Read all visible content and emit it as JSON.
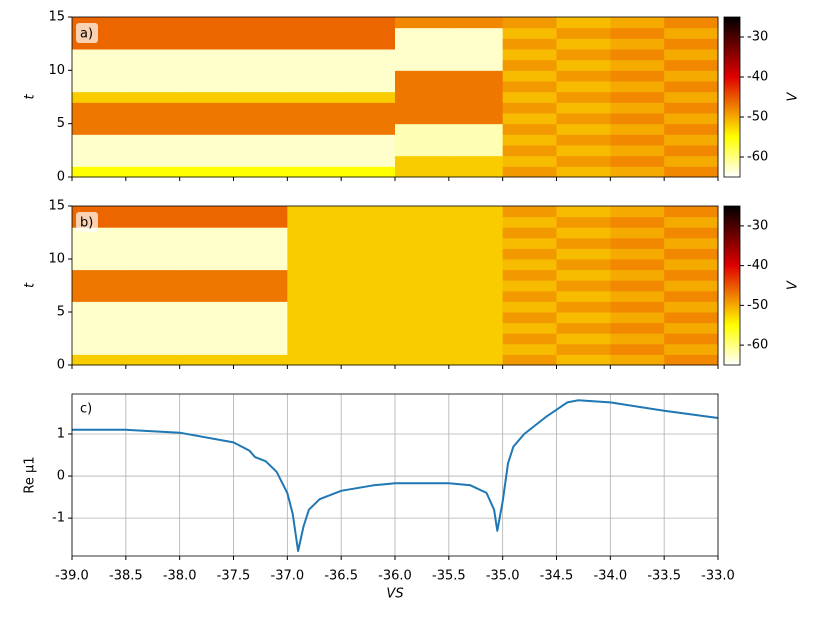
{
  "chart_data": [
    {
      "type": "heatmap",
      "panel_label": "a)",
      "ylabel": "t",
      "colorbar_label": "V",
      "colormap": "hot_r",
      "xbins": [
        -39,
        -38.5,
        -38,
        -37.5,
        -37,
        -36.5,
        -36,
        -35.5,
        -35,
        -34.5,
        -34,
        -33.5,
        -33
      ],
      "ybins": [
        0,
        1,
        2,
        3,
        4,
        5,
        6,
        7,
        8,
        9,
        10,
        11,
        12,
        13,
        14,
        15
      ],
      "z": [
        [
          -55,
          -55,
          -55,
          -55,
          -55,
          -55,
          -52,
          -52,
          -49,
          -51,
          -50,
          -48
        ],
        [
          -63,
          -63,
          -63,
          -63,
          -63,
          -63,
          -52,
          -52,
          -51,
          -49,
          -48,
          -50
        ],
        [
          -63,
          -63,
          -63,
          -63,
          -63,
          -63,
          -62,
          -62,
          -49,
          -51,
          -50,
          -48
        ],
        [
          -63,
          -63,
          -63,
          -63,
          -63,
          -63,
          -62,
          -62,
          -51,
          -49,
          -48,
          -50
        ],
        [
          -47,
          -47,
          -47,
          -47,
          -47,
          -47,
          -62,
          -62,
          -49,
          -51,
          -50,
          -48
        ],
        [
          -47,
          -47,
          -47,
          -47,
          -47,
          -47,
          -47,
          -47,
          -51,
          -49,
          -48,
          -50
        ],
        [
          -47,
          -47,
          -47,
          -47,
          -47,
          -47,
          -47,
          -47,
          -49,
          -51,
          -50,
          -48
        ],
        [
          -52,
          -52,
          -52,
          -52,
          -52,
          -52,
          -47,
          -47,
          -51,
          -49,
          -48,
          -50
        ],
        [
          -63,
          -63,
          -63,
          -63,
          -63,
          -63,
          -47,
          -47,
          -49,
          -51,
          -50,
          -48
        ],
        [
          -63,
          -63,
          -63,
          -63,
          -63,
          -63,
          -47,
          -47,
          -51,
          -49,
          -48,
          -50
        ],
        [
          -63,
          -63,
          -63,
          -63,
          -63,
          -63,
          -63,
          -63,
          -49,
          -51,
          -50,
          -48
        ],
        [
          -63,
          -63,
          -63,
          -63,
          -63,
          -63,
          -63,
          -63,
          -51,
          -49,
          -48,
          -50
        ],
        [
          -46,
          -46,
          -46,
          -46,
          -46,
          -46,
          -63,
          -63,
          -49,
          -51,
          -50,
          -48
        ],
        [
          -46,
          -46,
          -46,
          -46,
          -46,
          -46,
          -63,
          -63,
          -51,
          -49,
          -48,
          -50
        ],
        [
          -46,
          -46,
          -46,
          -46,
          -46,
          -46,
          -48,
          -48,
          -49,
          -51,
          -50,
          -48
        ]
      ],
      "xlim": [
        -39,
        -33
      ],
      "ylim": [
        0,
        15
      ],
      "yticks": [
        0,
        5,
        10,
        15
      ],
      "clim": [
        -65,
        -25
      ],
      "cticks": [
        -30,
        -40,
        -50,
        -60
      ]
    },
    {
      "type": "heatmap",
      "panel_label": "b)",
      "ylabel": "t",
      "colorbar_label": "V",
      "colormap": "hot_r",
      "xbins": [
        -39,
        -38.5,
        -38,
        -37.5,
        -37,
        -36.5,
        -36,
        -35.5,
        -35,
        -34.5,
        -34,
        -33.5,
        -33
      ],
      "ybins": [
        0,
        1,
        2,
        3,
        4,
        5,
        6,
        7,
        8,
        9,
        10,
        11,
        12,
        13,
        14,
        15
      ],
      "z": [
        [
          -52,
          -52,
          -52,
          -52,
          -52,
          -52,
          -52,
          -52,
          -49,
          -51,
          -50,
          -48
        ],
        [
          -63,
          -63,
          -63,
          -63,
          -52,
          -52,
          -52,
          -52,
          -51,
          -49,
          -48,
          -50
        ],
        [
          -63,
          -63,
          -63,
          -63,
          -52,
          -52,
          -52,
          -52,
          -49,
          -51,
          -50,
          -48
        ],
        [
          -63,
          -63,
          -63,
          -63,
          -52,
          -52,
          -52,
          -52,
          -51,
          -49,
          -48,
          -50
        ],
        [
          -63,
          -63,
          -63,
          -63,
          -52,
          -52,
          -52,
          -52,
          -49,
          -51,
          -50,
          -48
        ],
        [
          -63,
          -63,
          -63,
          -63,
          -52,
          -52,
          -52,
          -52,
          -51,
          -49,
          -48,
          -50
        ],
        [
          -47,
          -47,
          -47,
          -47,
          -52,
          -52,
          -52,
          -52,
          -49,
          -51,
          -50,
          -48
        ],
        [
          -47,
          -47,
          -47,
          -47,
          -52,
          -52,
          -52,
          -52,
          -51,
          -49,
          -48,
          -50
        ],
        [
          -47,
          -47,
          -47,
          -47,
          -52,
          -52,
          -52,
          -52,
          -49,
          -51,
          -50,
          -48
        ],
        [
          -63,
          -63,
          -63,
          -63,
          -52,
          -52,
          -52,
          -52,
          -51,
          -49,
          -48,
          -50
        ],
        [
          -63,
          -63,
          -63,
          -63,
          -52,
          -52,
          -52,
          -52,
          -49,
          -51,
          -50,
          -48
        ],
        [
          -63,
          -63,
          -63,
          -63,
          -52,
          -52,
          -52,
          -52,
          -51,
          -49,
          -48,
          -50
        ],
        [
          -63,
          -63,
          -63,
          -63,
          -52,
          -52,
          -52,
          -52,
          -49,
          -51,
          -50,
          -48
        ],
        [
          -46,
          -46,
          -46,
          -46,
          -52,
          -52,
          -52,
          -52,
          -51,
          -49,
          -48,
          -50
        ],
        [
          -46,
          -46,
          -46,
          -46,
          -52,
          -52,
          -52,
          -52,
          -49,
          -51,
          -50,
          -48
        ]
      ],
      "xlim": [
        -39,
        -33
      ],
      "ylim": [
        0,
        15
      ],
      "yticks": [
        0,
        5,
        10,
        15
      ],
      "clim": [
        -65,
        -25
      ],
      "cticks": [
        -30,
        -40,
        -50,
        -60
      ]
    },
    {
      "type": "line",
      "panel_label": "c)",
      "ylabel": "Re μ1",
      "xlabel": "VS",
      "color": "#1f77b4",
      "grid": true,
      "x": [
        -39,
        -38.5,
        -38,
        -37.5,
        -37.35,
        -37.3,
        -37.2,
        -37.1,
        -37.0,
        -36.95,
        -36.9,
        -36.85,
        -36.8,
        -36.7,
        -36.5,
        -36.2,
        -36.0,
        -35.5,
        -35.3,
        -35.15,
        -35.08,
        -35.05,
        -35.0,
        -34.95,
        -34.9,
        -34.8,
        -34.6,
        -34.4,
        -34.3,
        -34.0,
        -33.5,
        -33.0
      ],
      "y": [
        1.1,
        1.1,
        1.03,
        0.8,
        0.6,
        0.45,
        0.35,
        0.1,
        -0.4,
        -0.9,
        -1.78,
        -1.2,
        -0.8,
        -0.55,
        -0.35,
        -0.22,
        -0.17,
        -0.17,
        -0.22,
        -0.4,
        -0.8,
        -1.3,
        -0.6,
        0.3,
        0.7,
        1.0,
        1.4,
        1.75,
        1.8,
        1.75,
        1.55,
        1.38
      ],
      "xlim": [
        -39,
        -33
      ],
      "ylim": [
        -1.9,
        1.95
      ],
      "yticks": [
        -1,
        0,
        1
      ],
      "xticks": [
        {
          "value": -39,
          "label": "-39.0"
        },
        -38.5,
        {
          "value": -38,
          "label": "-38.0"
        },
        -37.5,
        {
          "value": -37,
          "label": "-37.0"
        },
        -36.5,
        {
          "value": -36,
          "label": "-36.0"
        },
        -35.5,
        {
          "value": -35,
          "label": "-35.0"
        },
        -34.5,
        {
          "value": -34,
          "label": "-34.0"
        },
        -33.5,
        {
          "value": -33,
          "label": "-33.0"
        }
      ]
    }
  ]
}
